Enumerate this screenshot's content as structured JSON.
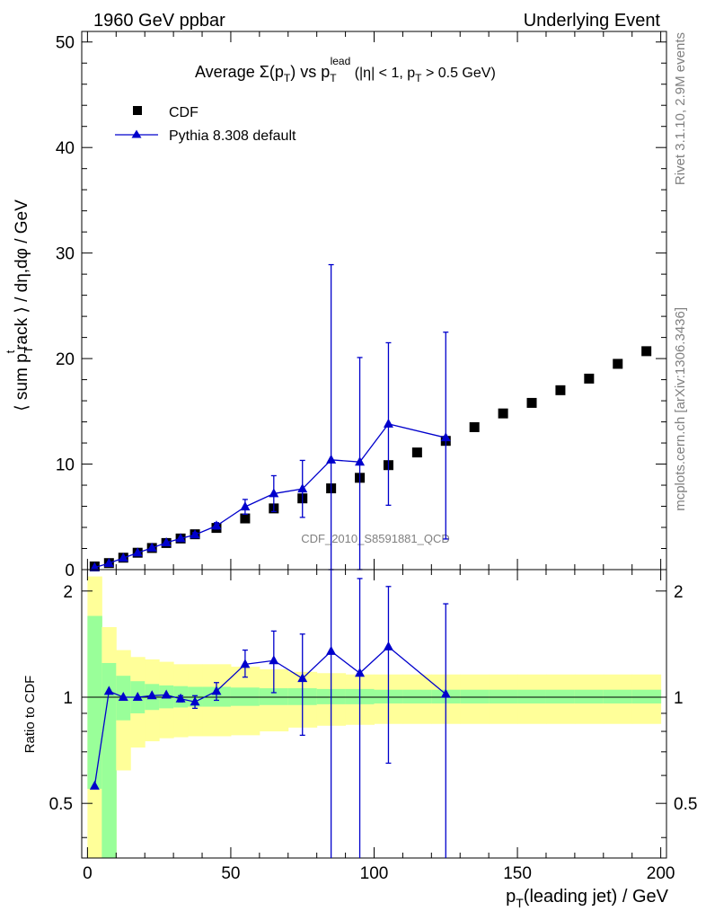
{
  "header": {
    "left": "1960 GeV ppbar",
    "right": "Underlying Event"
  },
  "side_labels": {
    "rivet": "Rivet 3.1.10,  2.9M events",
    "mcplots": "mcplots.cern.ch [arXiv:1306.3436]"
  },
  "watermark": "CDF_2010_S8591881_QCD",
  "chart_data": [
    {
      "type": "scatter",
      "panel": "main",
      "title": "Average Σ(pT) vs pTlead (|η| < 1, pT > 0.5 GeV)",
      "title_parts": {
        "prefix": "Average ",
        "sigma": "Σ(p",
        "sub1": "T",
        "mid": ") vs p",
        "sub2": "T",
        "sup2": "lead",
        "suffix": " (|η| < 1, p",
        "sub3": "T",
        "end": " > 0.5 GeV)"
      },
      "ylabel": "⟨ sum pTtrack ⟩ / dη,dφ / GeV",
      "ylabel_parts": {
        "a": "⟨ sum p",
        "sub": "T",
        "sup": "t",
        "b": "rack ⟩ / dη,dφ / GeV"
      },
      "xlim": [
        -2,
        202
      ],
      "ylim": [
        0,
        51
      ],
      "yticks": [
        0,
        10,
        20,
        30,
        40,
        50
      ],
      "legend_position": "top-left",
      "series": [
        {
          "name": "CDF",
          "marker": "square",
          "color": "#000000",
          "x": [
            2.5,
            7.5,
            12.5,
            17.5,
            22.5,
            27.5,
            32.5,
            37.5,
            45,
            55,
            65,
            75,
            85,
            95,
            105,
            115,
            125,
            135,
            145,
            155,
            165,
            175,
            185,
            195
          ],
          "y": [
            0.3,
            0.62,
            1.13,
            1.6,
            2.05,
            2.52,
            2.95,
            3.35,
            3.95,
            4.85,
            5.8,
            6.75,
            7.7,
            8.7,
            9.9,
            11.1,
            12.2,
            13.5,
            14.8,
            15.8,
            17.0,
            18.1,
            19.5,
            20.7
          ]
        },
        {
          "name": "Pythia 8.308 default",
          "marker": "triangle",
          "color": "#0000cc",
          "x": [
            2.5,
            7.5,
            12.5,
            17.5,
            22.5,
            27.5,
            32.5,
            37.5,
            45,
            55,
            65,
            75,
            85,
            95,
            105,
            125
          ],
          "y": [
            0.2,
            0.6,
            1.1,
            1.6,
            2.05,
            2.55,
            2.95,
            3.3,
            4.15,
            5.95,
            7.2,
            7.65,
            10.4,
            10.2,
            13.8,
            12.5
          ],
          "err_low": [
            0.05,
            0.05,
            0.05,
            0.06,
            0.08,
            0.1,
            0.12,
            0.2,
            0.3,
            0.7,
            1.7,
            2.7,
            10.4,
            10.2,
            7.7,
            9.6
          ],
          "err_high": [
            0.05,
            0.05,
            0.05,
            0.06,
            0.08,
            0.1,
            0.12,
            0.2,
            0.3,
            0.7,
            1.7,
            2.7,
            18.5,
            9.9,
            7.7,
            10.0
          ]
        }
      ]
    },
    {
      "type": "scatter",
      "panel": "ratio",
      "ylabel": "Ratio to CDF",
      "xlabel": "pT(leading jet) / GeV",
      "xlabel_parts": {
        "a": "p",
        "sub": "T",
        "b": "(leading jet) / GeV"
      },
      "xlim": [
        -2,
        202
      ],
      "ylim": [
        0.35,
        2.3
      ],
      "xticks": [
        0,
        50,
        100,
        150,
        200
      ],
      "yticks": [
        0.5,
        1,
        2
      ],
      "reference_line": 1,
      "bands": {
        "x_edges": [
          0,
          5,
          10,
          15,
          20,
          25,
          30,
          35,
          40,
          50,
          60,
          70,
          80,
          90,
          100,
          110,
          120,
          130,
          140,
          150,
          160,
          170,
          180,
          190,
          200
        ],
        "stat_color": "#99ff99",
        "syst_color": "#ffff99",
        "inner_low": [
          0.55,
          0.78,
          0.86,
          0.9,
          0.92,
          0.93,
          0.935,
          0.94,
          0.94,
          0.945,
          0.95,
          0.95,
          0.955,
          0.955,
          0.96,
          0.96,
          0.96,
          0.96,
          0.96,
          0.96,
          0.96,
          0.96,
          0.96,
          0.96
        ],
        "inner_high": [
          1.7,
          1.25,
          1.15,
          1.11,
          1.09,
          1.08,
          1.075,
          1.07,
          1.07,
          1.065,
          1.06,
          1.06,
          1.055,
          1.055,
          1.05,
          1.05,
          1.05,
          1.05,
          1.05,
          1.05,
          1.05,
          1.05,
          1.05,
          1.05
        ],
        "outer_low": [
          0.3,
          0.3,
          0.62,
          0.72,
          0.75,
          0.765,
          0.77,
          0.775,
          0.775,
          0.78,
          0.8,
          0.82,
          0.83,
          0.835,
          0.84,
          0.84,
          0.84,
          0.84,
          0.84,
          0.84,
          0.84,
          0.84,
          0.84,
          0.84
        ],
        "outer_high": [
          2.2,
          1.58,
          1.36,
          1.3,
          1.28,
          1.26,
          1.24,
          1.24,
          1.24,
          1.22,
          1.2,
          1.18,
          1.17,
          1.16,
          1.16,
          1.16,
          1.16,
          1.16,
          1.16,
          1.16,
          1.16,
          1.16,
          1.16,
          1.16
        ]
      },
      "series": [
        {
          "name": "Pythia 8.308 default",
          "marker": "triangle",
          "color": "#0000cc",
          "x": [
            2.5,
            7.5,
            12.5,
            17.5,
            22.5,
            27.5,
            32.5,
            37.5,
            45,
            55,
            65,
            75,
            85,
            95,
            105,
            125
          ],
          "y": [
            0.56,
            1.04,
            1.0,
            1.0,
            1.01,
            1.015,
            0.99,
            0.97,
            1.04,
            1.24,
            1.27,
            1.13,
            1.35,
            1.17,
            1.39,
            1.02
          ],
          "err_low": [
            0.0,
            0.0,
            0.0,
            0.0,
            0.0,
            0.0,
            0.02,
            0.04,
            0.06,
            0.1,
            0.24,
            0.35,
            1.0,
            1.0,
            0.74,
            0.7
          ],
          "err_high": [
            0.0,
            0.0,
            0.0,
            0.0,
            0.0,
            0.0,
            0.02,
            0.04,
            0.06,
            0.12,
            0.27,
            0.38,
            1.1,
            1.0,
            0.67,
            0.82
          ]
        }
      ]
    }
  ]
}
